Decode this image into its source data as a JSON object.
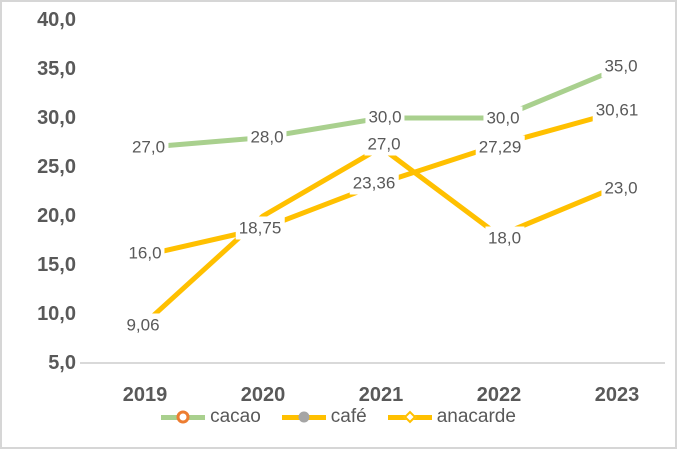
{
  "chart_data": {
    "type": "line",
    "title": "",
    "categories": [
      "2019",
      "2020",
      "2021",
      "2022",
      "2023"
    ],
    "y_axis": {
      "tick_labels": [
        "40,0",
        "35,0",
        "30,0",
        "25,0",
        "20,0",
        "15,0",
        "10,0",
        "5,0"
      ],
      "tick_values": [
        40,
        35,
        30,
        25,
        20,
        15,
        10,
        5
      ],
      "min": 5,
      "max": 40,
      "grid": false
    },
    "series": [
      {
        "name": "cacao",
        "color": "#a9d08e",
        "marker": "circle-hollow",
        "marker_color": "#ed7d31",
        "values": [
          27,
          28,
          30,
          30,
          35
        ],
        "labels": [
          "27,0",
          "28,0",
          "30,0",
          "30,0",
          "35,0"
        ]
      },
      {
        "name": "café",
        "color": "#ffc000",
        "marker": "circle-filled",
        "marker_color": "#a5a5a5",
        "values": [
          16,
          18.75,
          23.36,
          27.29,
          30.61
        ],
        "labels": [
          "16,0",
          "18,75",
          "23,36",
          "27,29",
          "30,61"
        ]
      },
      {
        "name": "anacarde",
        "color": "#ffc000",
        "marker": "diamond-hollow",
        "marker_color": "#ffc000",
        "values": [
          9.06,
          20,
          27,
          18,
          23
        ],
        "labels": [
          "9,06",
          null,
          "27,0",
          "18,0",
          "23,0"
        ]
      }
    ],
    "legend_position": "bottom",
    "colors": {
      "axis_line": "#d9d9d9",
      "tick_text": "#595959",
      "data_label_text": "#595959"
    }
  }
}
